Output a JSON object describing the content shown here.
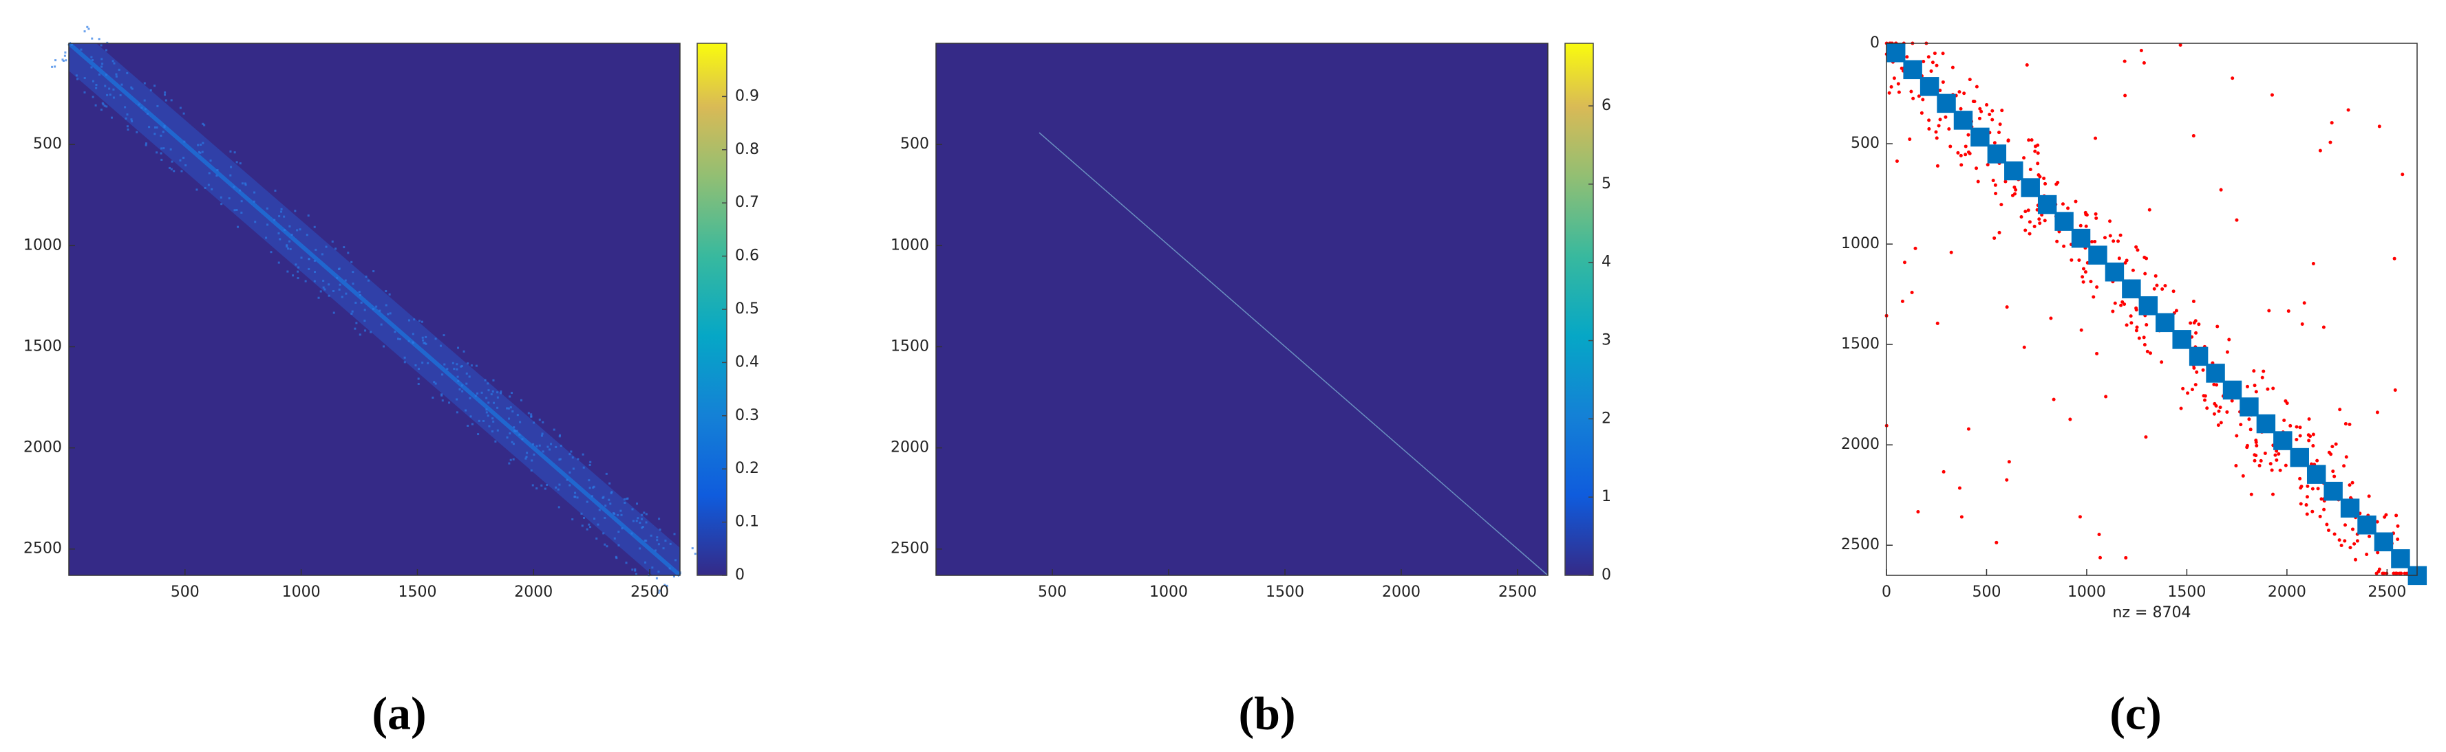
{
  "chart_data": [
    {
      "type": "heatmap",
      "label": "(a)",
      "xlim": [
        0,
        2630
      ],
      "ylim": [
        0,
        2630
      ],
      "xticks": [
        500,
        1000,
        1500,
        2000,
        2500
      ],
      "yticks": [
        500,
        1000,
        1500,
        2000,
        2500
      ],
      "clim": [
        0,
        1
      ],
      "cticks": [
        0,
        0.1,
        0.2,
        0.3,
        0.4,
        0.5,
        0.6,
        0.7,
        0.8,
        0.9
      ],
      "colormap": "parula"
    },
    {
      "type": "heatmap",
      "label": "(b)",
      "xlim": [
        0,
        2630
      ],
      "ylim": [
        0,
        2630
      ],
      "xticks": [
        500,
        1000,
        1500,
        2000,
        2500
      ],
      "yticks": [
        500,
        1000,
        1500,
        2000,
        2500
      ],
      "clim": [
        0,
        6.8
      ],
      "cticks": [
        0,
        1,
        2,
        3,
        4,
        5,
        6
      ],
      "colormap": "parula"
    },
    {
      "type": "spy",
      "label": "(c)",
      "xlabel": "nz = 8704",
      "xlim": [
        0,
        2650
      ],
      "ylim": [
        0,
        2650
      ],
      "xticks": [
        0,
        500,
        1000,
        1500,
        2000,
        2500
      ],
      "yticks": [
        0,
        500,
        1000,
        1500,
        2000,
        2500
      ],
      "colors": [
        "#0072bd",
        "#ff0000"
      ]
    }
  ]
}
